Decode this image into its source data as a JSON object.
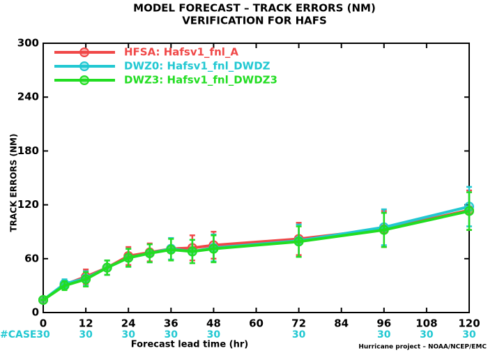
{
  "chart_data": {
    "type": "line",
    "title": "MODEL FORECAST – TRACK ERRORS (NM)",
    "subtitle": "VERIFICATION FOR HAFS",
    "x_label": "Forecast lead time (hr)",
    "y_label": "TRACK ERRORS (NM)",
    "x": [
      0,
      6,
      12,
      18,
      24,
      30,
      36,
      42,
      48,
      72,
      96,
      120
    ],
    "series": [
      {
        "name": "HFSA: Hafsv1_fnl_A",
        "color": "#f04848",
        "values": [
          14,
          31,
          40,
          50,
          63,
          67,
          71,
          72,
          75,
          82,
          93,
          114
        ],
        "errors": [
          0,
          5,
          8,
          8,
          10,
          10,
          12,
          14,
          15,
          18,
          20,
          22
        ]
      },
      {
        "name": "DWZ0: Hafsv1_fnl_DWDZ",
        "color": "#22c8d2",
        "values": [
          14,
          32,
          38,
          50,
          61,
          66,
          71,
          68,
          72,
          80,
          95,
          118
        ],
        "errors": [
          0,
          5,
          8,
          8,
          10,
          10,
          12,
          13,
          15,
          18,
          20,
          22
        ]
      },
      {
        "name": "DWZ3: Hafsv1_fnl_DWDZ3",
        "color": "#22dd22",
        "values": [
          14,
          30,
          37,
          50,
          61,
          66,
          70,
          68,
          71,
          79,
          92,
          113
        ],
        "errors": [
          0,
          5,
          8,
          8,
          10,
          10,
          12,
          13,
          15,
          17,
          19,
          21
        ]
      }
    ],
    "xlim": [
      0,
      120
    ],
    "ylim": [
      0,
      300
    ],
    "xticks": [
      0,
      12,
      24,
      36,
      48,
      60,
      72,
      84,
      96,
      108,
      120
    ],
    "yticks": [
      0,
      60,
      120,
      180,
      240,
      300
    ],
    "case_label": "#CASE",
    "case_x": [
      0,
      12,
      24,
      36,
      48,
      72,
      96,
      108,
      120
    ],
    "case_counts": [
      30,
      30,
      30,
      30,
      30,
      30,
      30,
      30,
      30
    ],
    "case_color": "#22c8d2",
    "footer": "Hurricane project – NOAA/NCEP/EMC"
  }
}
